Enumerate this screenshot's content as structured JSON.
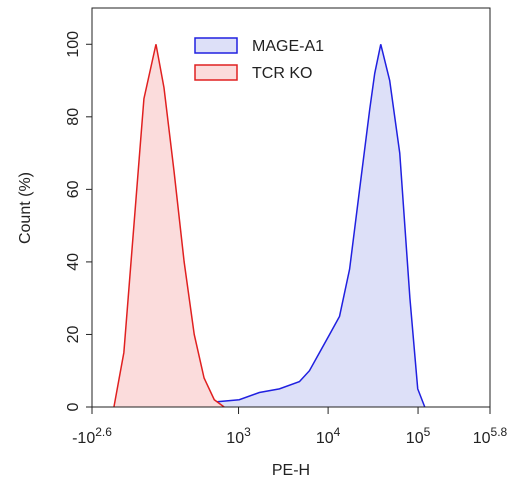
{
  "chart_data": {
    "type": "area",
    "xlabel": "PE-H",
    "ylabel": "Count (%)",
    "xscale": "biexponential",
    "xlim": [
      -398,
      631000
    ],
    "ylim": [
      0,
      110
    ],
    "xticks": [
      {
        "value": -398,
        "label": "-10",
        "exponent": "2.6"
      },
      {
        "value": 1000,
        "label": "10",
        "exponent": "3"
      },
      {
        "value": 10000,
        "label": "10",
        "exponent": "4"
      },
      {
        "value": 100000,
        "label": "10",
        "exponent": "5"
      },
      {
        "value": 631000,
        "label": "10",
        "exponent": "5.8"
      }
    ],
    "yticks": [
      0,
      20,
      40,
      60,
      80,
      100
    ],
    "series": [
      {
        "name": "MAGE-A1",
        "color": "#2020e0",
        "fill": "#dde0f8",
        "x": [
          112,
          340,
          1018,
          1714,
          2870,
          4798,
          6200,
          8020,
          10380,
          13400,
          17340,
          22400,
          29000,
          33000,
          38500,
          48400,
          62600,
          81200,
          99200,
          118800
        ],
        "values": [
          1,
          1,
          2,
          4,
          5,
          7,
          10,
          15,
          20,
          25,
          38,
          60,
          82,
          92,
          100,
          90,
          70,
          30,
          5,
          0
        ]
      },
      {
        "name": "TCR KO",
        "color": "#e02020",
        "fill": "#fbdcdc",
        "x": [
          -199,
          -133,
          -75,
          -22,
          40,
          83,
          142,
          211,
          294,
          394,
          524,
          684
        ],
        "values": [
          0,
          15,
          50,
          85,
          100,
          88,
          65,
          40,
          20,
          8,
          2,
          0
        ]
      }
    ]
  }
}
